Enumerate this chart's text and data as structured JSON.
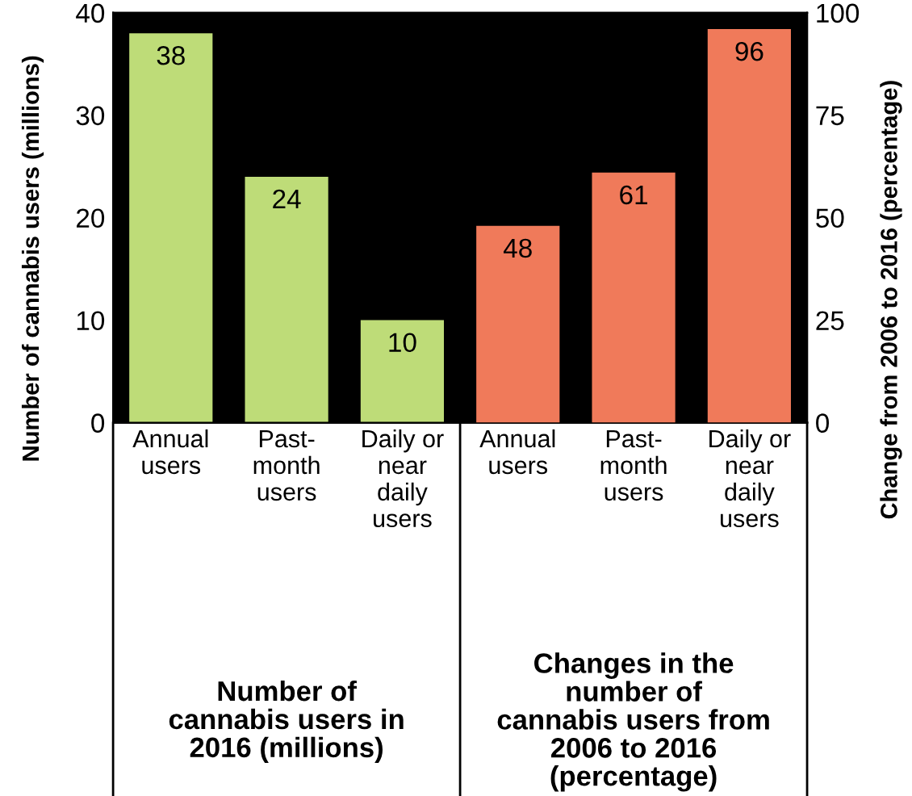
{
  "chart_data": {
    "type": "bar",
    "categories": [
      "Annual\nusers",
      "Past-\nmonth\nusers",
      "Daily or\nnear\ndaily\nusers",
      "Annual\nusers",
      "Past-\nmonth\nusers",
      "Daily or\nnear\ndaily\nusers"
    ],
    "series": [
      {
        "color": "#bedc78",
        "values": [
          38,
          24,
          10,
          null,
          null,
          null
        ]
      },
      {
        "color": "#f07a5a",
        "axis": "y2",
        "values": [
          null,
          null,
          null,
          48,
          61,
          96
        ]
      }
    ],
    "ylabel": "Number of cannabis users (millions)",
    "y2label": "Change from 2006 to 2016 (percentage)",
    "ylim": [
      0,
      40
    ],
    "yticks": [
      0,
      10,
      20,
      30,
      40
    ],
    "y2lim": [
      0,
      100
    ],
    "y2ticks": [
      0,
      25,
      50,
      75,
      100
    ],
    "annotations": [
      "Number of\ncannabis users in\n2016 (millions)",
      "Changes in the\nnumber of\ncannabis users from\n2006 to 2016\n(percentage)"
    ],
    "data_labels": true,
    "grid": false,
    "legend": false
  }
}
